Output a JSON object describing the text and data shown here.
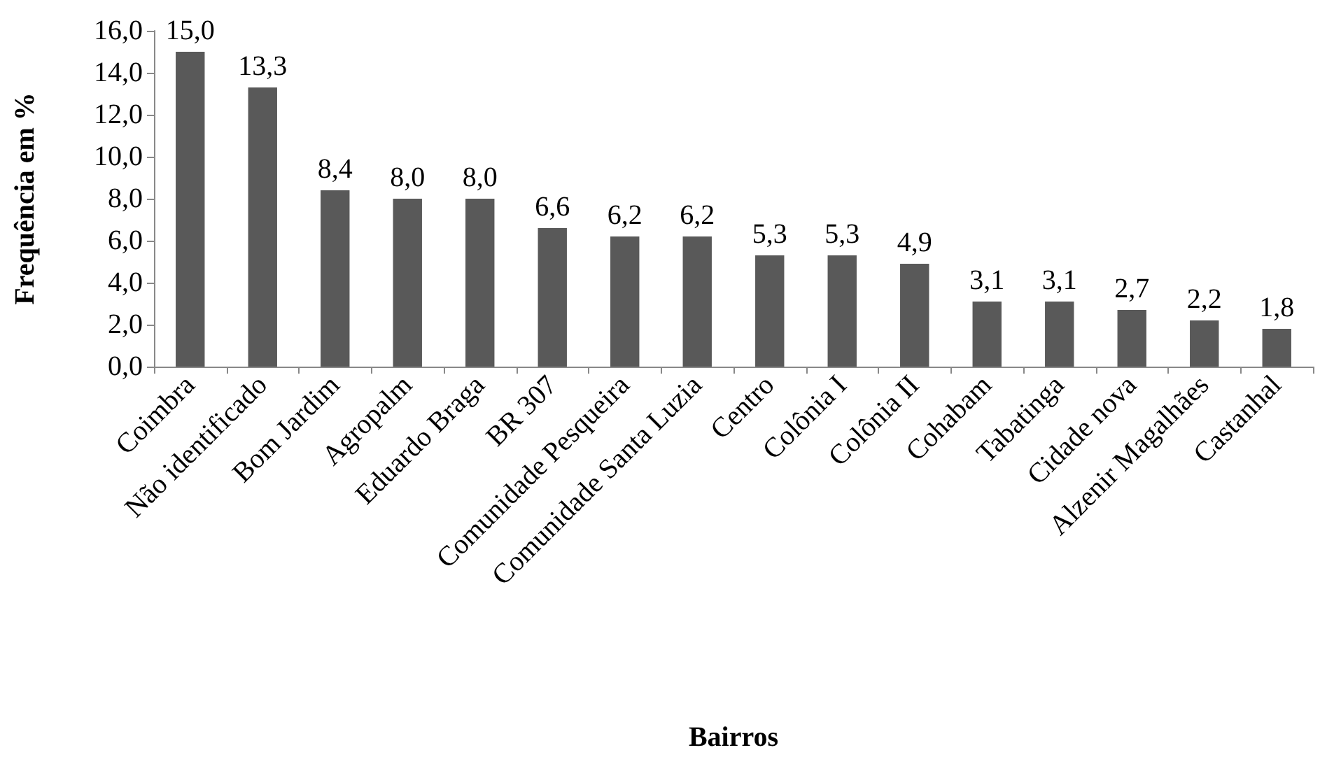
{
  "chart_data": {
    "type": "bar",
    "xlabel": "Bairros",
    "ylabel": "Frequência em %",
    "categories": [
      "Coimbra",
      "Não identificado",
      "Bom Jardim",
      "Agropalm",
      "Eduardo Braga",
      "BR 307",
      "Comunidade Pesqueira",
      "Comunidade Santa Luzia",
      "Centro",
      "Colônia I",
      "Colônia II",
      "Cohabam",
      "Tabatinga",
      "Cidade nova",
      "Alzenir Magalhães",
      "Castanhal"
    ],
    "values": [
      15.0,
      13.3,
      8.4,
      8.0,
      8.0,
      6.6,
      6.2,
      6.2,
      5.3,
      5.3,
      4.9,
      3.1,
      3.1,
      2.7,
      2.2,
      1.8
    ],
    "value_labels": [
      "15,0",
      "13,3",
      "8,4",
      "8,0",
      "8,0",
      "6,6",
      "6,2",
      "6,2",
      "5,3",
      "5,3",
      "4,9",
      "3,1",
      "3,1",
      "2,7",
      "2,2",
      "1,8"
    ],
    "color": "#595959",
    "ylim": [
      0,
      16
    ],
    "yticks": [
      {
        "value": 0,
        "label": "0,0"
      },
      {
        "value": 2,
        "label": "2,0"
      },
      {
        "value": 4,
        "label": "4,0"
      },
      {
        "value": 6,
        "label": "6,0"
      },
      {
        "value": 8,
        "label": "8,0"
      },
      {
        "value": 10,
        "label": "10,0"
      },
      {
        "value": 12,
        "label": "12,0"
      },
      {
        "value": 14,
        "label": "14,0"
      },
      {
        "value": 16,
        "label": "16,0"
      }
    ],
    "grid": false
  }
}
